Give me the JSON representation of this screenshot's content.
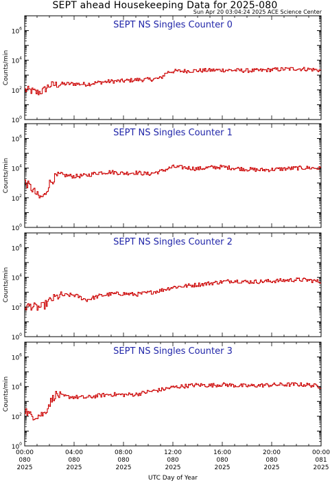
{
  "header": {
    "title": "SEPT ahead Housekeeping Data for 2025-080",
    "subtitle": "Sun Apr 20 03:04:24 2025 ACE Science Center"
  },
  "colors": {
    "panel_title": "#1f24a8",
    "series_line": "#cc0000",
    "axes": "#000000"
  },
  "chart_data": {
    "type": "line",
    "xlabel": "UTC Day of Year",
    "ylabel": "Counts/min",
    "x_ticks": [
      {
        "time": "00:00",
        "day": "080",
        "year": "2025"
      },
      {
        "time": "04:00",
        "day": "080",
        "year": "2025"
      },
      {
        "time": "08:00",
        "day": "080",
        "year": "2025"
      },
      {
        "time": "12:00",
        "day": "080",
        "year": "2025"
      },
      {
        "time": "16:00",
        "day": "080",
        "year": "2025"
      },
      {
        "time": "20:00",
        "day": "080",
        "year": "2025"
      },
      {
        "time": "00:00",
        "day": "081",
        "year": "2025"
      }
    ],
    "x_range_hours": [
      0,
      24
    ],
    "y_scale": "log",
    "y_range": [
      1,
      10000000
    ],
    "y_tick_labels": [
      "10^0",
      "10^2",
      "10^4",
      "10^6"
    ],
    "panels": [
      {
        "title": "SEPT NS Singles Counter 0",
        "anchors_hours": [
          0,
          0.5,
          1,
          1.5,
          2,
          3,
          4,
          5,
          6,
          7,
          8,
          9,
          10,
          11,
          11.5,
          12,
          13,
          14,
          15,
          16,
          17,
          18,
          19,
          20,
          21,
          22,
          23,
          24
        ],
        "anchors_counts": [
          100,
          90,
          65,
          85,
          200,
          250,
          260,
          240,
          320,
          380,
          400,
          480,
          500,
          600,
          1500,
          1800,
          1900,
          2000,
          2100,
          2200,
          2100,
          2000,
          2000,
          2300,
          2500,
          2700,
          2500,
          2100
        ]
      },
      {
        "title": "SEPT NS Singles Counter 1",
        "anchors_hours": [
          0,
          0.4,
          0.8,
          1.2,
          1.6,
          2,
          2.5,
          3,
          4,
          5,
          6,
          7,
          8,
          9,
          10,
          11,
          12,
          13,
          14,
          15,
          16,
          17,
          18,
          19,
          20,
          21,
          22,
          23,
          24
        ],
        "anchors_counts": [
          1200,
          600,
          250,
          100,
          130,
          900,
          2500,
          3500,
          2800,
          3200,
          5000,
          5500,
          4500,
          5000,
          4000,
          6000,
          12000,
          11000,
          9000,
          11000,
          12000,
          10000,
          8500,
          7500,
          8000,
          9000,
          10000,
          10500,
          9500
        ]
      },
      {
        "title": "SEPT NS Singles Counter 2",
        "anchors_hours": [
          0,
          0.5,
          1,
          1.5,
          2,
          2.5,
          3,
          4,
          5,
          6,
          7,
          8,
          9,
          10,
          11,
          12,
          13,
          14,
          15,
          16,
          17,
          18,
          19,
          20,
          21,
          22,
          23,
          24
        ],
        "anchors_counts": [
          100,
          120,
          90,
          110,
          250,
          450,
          600,
          650,
          300,
          550,
          750,
          800,
          700,
          900,
          1300,
          2200,
          2600,
          3200,
          4000,
          5000,
          6000,
          5000,
          5200,
          5600,
          6200,
          7000,
          6500,
          5000
        ]
      },
      {
        "title": "SEPT NS Singles Counter 3",
        "anchors_hours": [
          0,
          0.4,
          0.8,
          1.2,
          1.6,
          2,
          2.5,
          3,
          4,
          5,
          6,
          7,
          8,
          9,
          10,
          11,
          12,
          13,
          14,
          15,
          16,
          17,
          18,
          19,
          20,
          21,
          22,
          23,
          24
        ],
        "anchors_counts": [
          300,
          120,
          100,
          120,
          150,
          700,
          3000,
          2200,
          2000,
          1800,
          2500,
          3000,
          2800,
          3000,
          4500,
          6000,
          9000,
          11000,
          13000,
          12000,
          14000,
          12000,
          11000,
          12000,
          13000,
          13500,
          14000,
          13000,
          10000
        ]
      }
    ]
  }
}
